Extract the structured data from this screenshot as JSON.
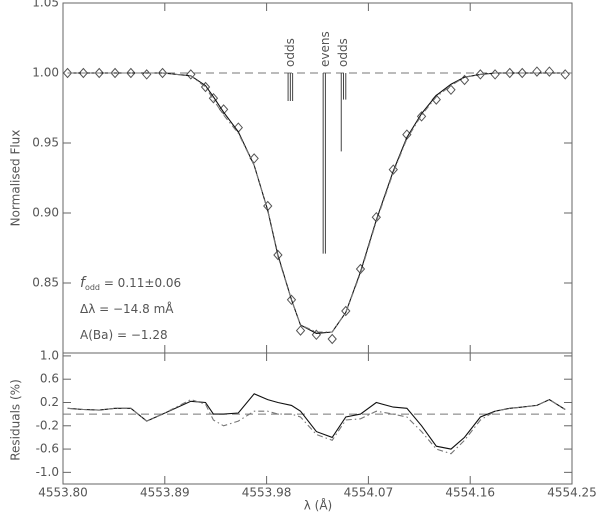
{
  "chart_data": [
    {
      "type": "line",
      "ylabel": "Normalised Flux",
      "xlim": [
        4553.8,
        4554.25
      ],
      "xticks": [
        4553.8,
        4553.89,
        4553.98,
        4554.07,
        4554.16,
        4554.25
      ],
      "ylim": [
        0.8,
        1.05
      ],
      "yticks": [
        0.85,
        {
          "value": 0.9,
          "label": "0.90"
        },
        0.95,
        {
          "value": 1,
          "label": "1.00"
        },
        1.05
      ],
      "hline": 1,
      "x": [
        4553.804,
        4553.818,
        4553.832,
        4553.846,
        4553.86,
        4553.874,
        4553.888,
        4553.913,
        4553.926,
        4553.933,
        4553.942,
        4553.955,
        4553.969,
        4553.981,
        4553.99,
        4554.002,
        4554.01,
        4554.024,
        4554.038,
        4554.05,
        4554.063,
        4554.077,
        4554.092,
        4554.104,
        4554.117,
        4554.13,
        4554.143,
        4554.155,
        4554.169,
        4554.182,
        4554.195,
        4554.206,
        4554.219,
        4554.23,
        4554.244
      ],
      "series": [
        {
          "color": "#555555",
          "linestyle": "none",
          "marker": "diamond",
          "values": [
            1,
            1,
            1,
            1,
            1,
            0.999,
            1,
            0.999,
            0.99,
            0.982,
            0.974,
            0.961,
            0.939,
            0.905,
            0.87,
            0.838,
            0.816,
            0.813,
            0.81,
            0.83,
            0.86,
            0.897,
            0.931,
            0.956,
            0.969,
            0.981,
            0.988,
            0.995,
            0.999,
            0.999,
            1,
            1,
            1.001,
            1.001,
            0.999
          ]
        },
        {
          "color": "#111111",
          "linestyle": "solid",
          "values": [
            1,
            1,
            1,
            1,
            1,
            1,
            1,
            0.998,
            0.991,
            0.983,
            0.972,
            0.958,
            0.934,
            0.902,
            0.87,
            0.838,
            0.82,
            0.814,
            0.815,
            0.829,
            0.858,
            0.895,
            0.93,
            0.954,
            0.971,
            0.984,
            0.992,
            0.997,
            0.999,
            1,
            1,
            1,
            1,
            1,
            1
          ]
        },
        {
          "color": "#777777",
          "linestyle": "dashdot",
          "values": [
            1,
            1,
            1,
            1,
            1,
            1,
            1,
            0.998,
            0.99,
            0.981,
            0.97,
            0.957,
            0.934,
            0.902,
            0.869,
            0.838,
            0.82,
            0.815,
            0.815,
            0.829,
            0.857,
            0.894,
            0.929,
            0.953,
            0.97,
            0.983,
            0.991,
            0.997,
            0.999,
            1,
            1,
            1,
            1,
            1,
            1
          ]
        }
      ],
      "line_groups": [
        {
          "label": "odds",
          "x": [
            4553.999,
            4554.001,
            4554.003
          ],
          "ymin": [
            0.98,
            0.98,
            0.98
          ]
        },
        {
          "label": "evens",
          "x": [
            4554.03,
            4554.032
          ],
          "ymin": [
            0.871,
            0.871
          ]
        },
        {
          "label": "odds",
          "x": [
            4554.046,
            4554.048,
            4554.05
          ],
          "ymin": [
            0.944,
            0.981,
            0.981
          ]
        }
      ],
      "annotations": [
        {
          "symbol": "f",
          "subscript": "odd",
          "text": " = 0.11±0.06"
        },
        {
          "text": "Δλ = −14.8 mÅ"
        },
        {
          "text": "A(Ba) = −1.28"
        }
      ]
    },
    {
      "type": "line",
      "ylabel": "Residuals (%)",
      "xlabel": "λ (Å)",
      "xlim": [
        4553.8,
        4554.25
      ],
      "xticks": [
        {
          "value": 4553.8,
          "label": "4553.80"
        },
        {
          "value": 4553.89,
          "label": "4553.89"
        },
        {
          "value": 4553.98,
          "label": "4553.98"
        },
        {
          "value": 4554.07,
          "label": "4554.07"
        },
        {
          "value": 4554.16,
          "label": "4554.16"
        },
        {
          "value": 4554.25,
          "label": "4554.25"
        }
      ],
      "ylim": [
        -1.2,
        1.05
      ],
      "yticks": [
        {
          "value": -1,
          "label": "-1.0"
        },
        -0.6,
        -0.2,
        0.2,
        0.6,
        {
          "value": 1,
          "label": "1.0"
        }
      ],
      "hline": 0,
      "x": [
        4553.804,
        4553.818,
        4553.832,
        4553.846,
        4553.86,
        4553.874,
        4553.888,
        4553.913,
        4553.926,
        4553.933,
        4553.942,
        4553.955,
        4553.969,
        4553.981,
        4553.99,
        4554.002,
        4554.01,
        4554.024,
        4554.038,
        4554.05,
        4554.063,
        4554.077,
        4554.092,
        4554.104,
        4554.117,
        4554.13,
        4554.143,
        4554.155,
        4554.169,
        4554.182,
        4554.195,
        4554.206,
        4554.219,
        4554.23,
        4554.244
      ],
      "series": [
        {
          "color": "#111111",
          "linestyle": "solid",
          "values": [
            0.1,
            0.08,
            0.07,
            0.1,
            0.1,
            -0.12,
            0,
            0.22,
            0.2,
            0,
            0,
            0.02,
            0.35,
            0.25,
            0.2,
            0.15,
            0.05,
            -0.3,
            -0.4,
            -0.05,
            0,
            0.2,
            0.12,
            0.1,
            -0.2,
            -0.55,
            -0.6,
            -0.4,
            -0.05,
            0.05,
            0.1,
            0.12,
            0.15,
            0.25,
            0.08
          ]
        },
        {
          "color": "#777777",
          "linestyle": "dashdot",
          "values": [
            0.1,
            0.08,
            0.07,
            0.1,
            0.1,
            -0.12,
            0,
            0.25,
            0.17,
            -0.1,
            -0.2,
            -0.12,
            0.05,
            0.05,
            0,
            0,
            -0.05,
            -0.35,
            -0.45,
            -0.1,
            -0.08,
            0.05,
            0,
            -0.05,
            -0.3,
            -0.6,
            -0.68,
            -0.45,
            -0.1,
            0.05,
            0.1,
            0.12,
            0.15,
            0.25,
            0.08
          ]
        }
      ]
    }
  ]
}
